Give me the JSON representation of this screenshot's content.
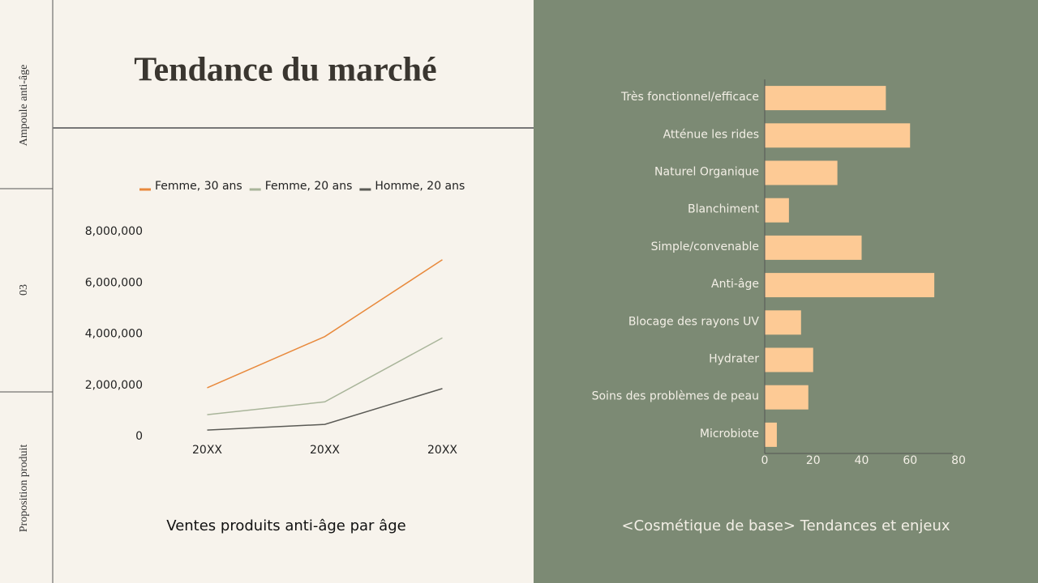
{
  "sidebar": {
    "section": "Ampoule anti-âge",
    "number": "03",
    "label": "Proposition produit"
  },
  "header": {
    "title": "Tendance du marché"
  },
  "chart_data": [
    {
      "type": "line",
      "title": "Ventes produits anti-âge par âge",
      "categories": [
        "20XX",
        "20XX",
        "20XX"
      ],
      "series": [
        {
          "name": "Femme, 30 ans",
          "color": "#e8893c",
          "values": [
            1900000,
            3900000,
            6900000
          ]
        },
        {
          "name": "Femme, 20 ans",
          "color": "#a9b59a",
          "values": [
            850000,
            1350000,
            3850000
          ]
        },
        {
          "name": "Homme, 20 ans",
          "color": "#5a5a55",
          "values": [
            250000,
            470000,
            1870000
          ]
        }
      ],
      "ylim": [
        0,
        8000000
      ],
      "yticks": [
        0,
        {
          "value": 2000000,
          "label": "2,000,000"
        },
        {
          "value": 4000000,
          "label": "4,000,000"
        },
        {
          "value": 6000000,
          "label": "6,000,000"
        },
        {
          "value": 8000000,
          "label": "8,000,000"
        }
      ],
      "grid": false,
      "legend": "top"
    },
    {
      "type": "bar",
      "orientation": "horizontal",
      "title": "<Cosmétique de base> Tendances et enjeux",
      "categories": [
        "Très fonctionnel/efficace",
        "Atténue les rides",
        "Naturel Organique",
        "Blanchiment",
        "Simple/convenable",
        "Anti-âge",
        "Blocage des rayons UV",
        "Hydrater",
        "Soins des problèmes de peau",
        "Microbiote"
      ],
      "values": [
        50,
        60,
        30,
        10,
        40,
        70,
        15,
        20,
        18,
        5
      ],
      "color": "#fdca95",
      "xlim": [
        0,
        80
      ],
      "xticks": [
        0,
        20,
        40,
        60,
        80
      ],
      "grid": false
    }
  ]
}
